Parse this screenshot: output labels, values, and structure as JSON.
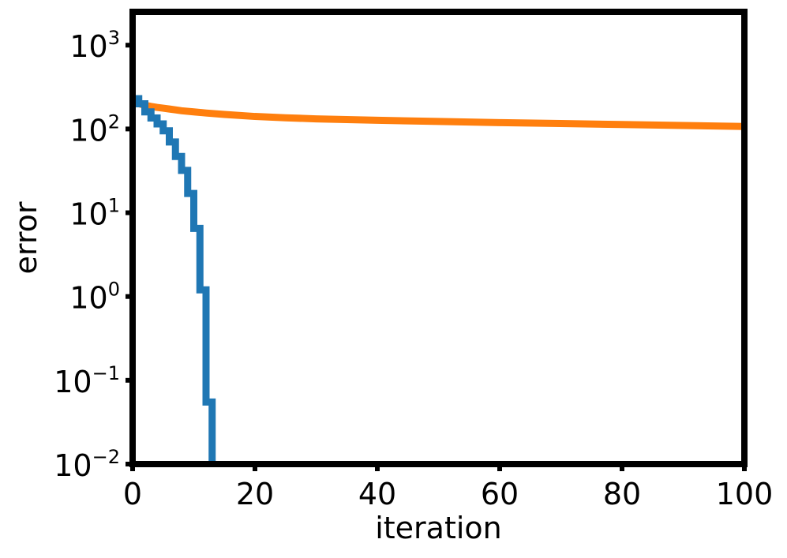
{
  "chart_data": {
    "type": "line",
    "title": "",
    "xlabel": "iteration",
    "ylabel": "error",
    "xlim": [
      0,
      100
    ],
    "ylim": [
      0.01,
      2500
    ],
    "yscale": "log",
    "grid": false,
    "x_ticks": [
      {
        "value": 0,
        "label": "0"
      },
      {
        "value": 20,
        "label": "20"
      },
      {
        "value": 40,
        "label": "40"
      },
      {
        "value": 60,
        "label": "60"
      },
      {
        "value": 80,
        "label": "80"
      },
      {
        "value": 100,
        "label": "100"
      }
    ],
    "y_ticks": [
      {
        "value": 0.01,
        "base": "10",
        "exp": "−2"
      },
      {
        "value": 0.1,
        "base": "10",
        "exp": "−1"
      },
      {
        "value": 1,
        "base": "10",
        "exp": "0"
      },
      {
        "value": 10,
        "base": "10",
        "exp": "1"
      },
      {
        "value": 100,
        "base": "10",
        "exp": "2"
      },
      {
        "value": 1000,
        "base": "10",
        "exp": "3"
      }
    ],
    "series": [
      {
        "color": "#ff7f0e",
        "step": false,
        "x": [
          0,
          1,
          2,
          3,
          4,
          5,
          6,
          7,
          8,
          10,
          12,
          15,
          20,
          25,
          30,
          40,
          50,
          60,
          70,
          80,
          90,
          100
        ],
        "y": [
          210,
          200,
          192,
          186,
          181,
          177,
          173,
          169,
          165,
          160,
          155,
          149,
          141,
          136,
          132,
          127,
          123,
          119,
          116,
          113,
          110,
          107
        ]
      },
      {
        "color": "#1f77b4",
        "step": true,
        "x": [
          0,
          1,
          2,
          3,
          4,
          5,
          6,
          7,
          8,
          9,
          10,
          11,
          12,
          13
        ],
        "y": [
          230,
          200,
          160,
          135,
          115,
          95,
          70,
          47,
          32,
          17,
          6.5,
          1.2,
          0.055,
          0.009
        ]
      }
    ]
  }
}
